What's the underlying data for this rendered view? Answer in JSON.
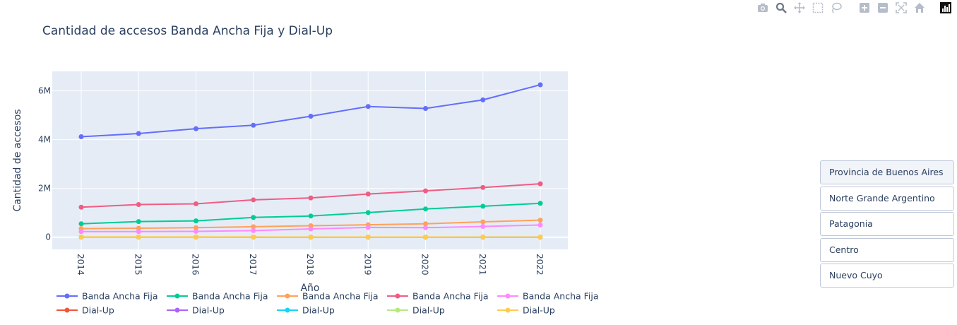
{
  "modebar": {
    "icons": [
      "camera-icon",
      "zoom-icon",
      "pan-icon",
      "box-select-icon",
      "lasso-icon",
      "zoom-in-icon",
      "zoom-out-icon",
      "autoscale-icon",
      "reset-axes-icon",
      "plotly-logo"
    ]
  },
  "region_buttons": [
    {
      "label": "Provincia de Buenos Aires",
      "active": true
    },
    {
      "label": "Norte Grande Argentino",
      "active": false
    },
    {
      "label": "Patagonia",
      "active": false
    },
    {
      "label": "Centro",
      "active": false
    },
    {
      "label": "Nuevo Cuyo",
      "active": false
    }
  ],
  "chart_data": {
    "type": "line",
    "title": "Cantidad de accesos Banda Ancha Fija y Dial-Up",
    "xlabel": "Año",
    "ylabel": "Cantidad de accesos",
    "x": [
      "2014",
      "2015",
      "2016",
      "2017",
      "2018",
      "2019",
      "2020",
      "2021",
      "2022"
    ],
    "ylim": [
      -500000,
      6800000
    ],
    "yticks": [
      0,
      2000000,
      4000000,
      6000000
    ],
    "ytick_labels": [
      "0",
      "2M",
      "4M",
      "6M"
    ],
    "grid": true,
    "legend_position": "bottom",
    "series": [
      {
        "name": "Banda Ancha Fija",
        "color": "#636efa",
        "values": [
          4120000,
          4250000,
          4450000,
          4590000,
          4960000,
          5360000,
          5280000,
          5630000,
          6250000
        ]
      },
      {
        "name": "Banda Ancha Fija",
        "color": "#00cc96",
        "values": [
          550000,
          640000,
          670000,
          810000,
          870000,
          1010000,
          1160000,
          1270000,
          1390000
        ]
      },
      {
        "name": "Banda Ancha Fija",
        "color": "#ffa15a",
        "values": [
          350000,
          370000,
          390000,
          430000,
          470000,
          510000,
          550000,
          630000,
          700000
        ]
      },
      {
        "name": "Banda Ancha Fija",
        "color": "#ef5d84",
        "values": [
          1230000,
          1340000,
          1370000,
          1530000,
          1610000,
          1770000,
          1900000,
          2040000,
          2190000
        ]
      },
      {
        "name": "Banda Ancha Fija",
        "color": "#ff88ff",
        "values": [
          230000,
          230000,
          240000,
          270000,
          340000,
          400000,
          390000,
          440000,
          500000
        ]
      },
      {
        "name": "Dial-Up",
        "color": "#ef553b",
        "values": [
          8000,
          7000,
          6000,
          5000,
          4000,
          3000,
          3000,
          2000,
          2000
        ]
      },
      {
        "name": "Dial-Up",
        "color": "#ab63fa",
        "values": [
          5000,
          4000,
          4000,
          3000,
          3000,
          2000,
          2000,
          1000,
          1000
        ]
      },
      {
        "name": "Dial-Up",
        "color": "#19d3f3",
        "values": [
          4000,
          4000,
          3000,
          3000,
          2000,
          2000,
          1000,
          1000,
          1000
        ]
      },
      {
        "name": "Dial-Up",
        "color": "#b6e880",
        "values": [
          3000,
          3000,
          2000,
          2000,
          2000,
          1000,
          1000,
          1000,
          1000
        ]
      },
      {
        "name": "Dial-Up",
        "color": "#fecb52",
        "values": [
          12000,
          11000,
          10000,
          9000,
          8000,
          7000,
          6000,
          5000,
          4000
        ]
      }
    ]
  }
}
